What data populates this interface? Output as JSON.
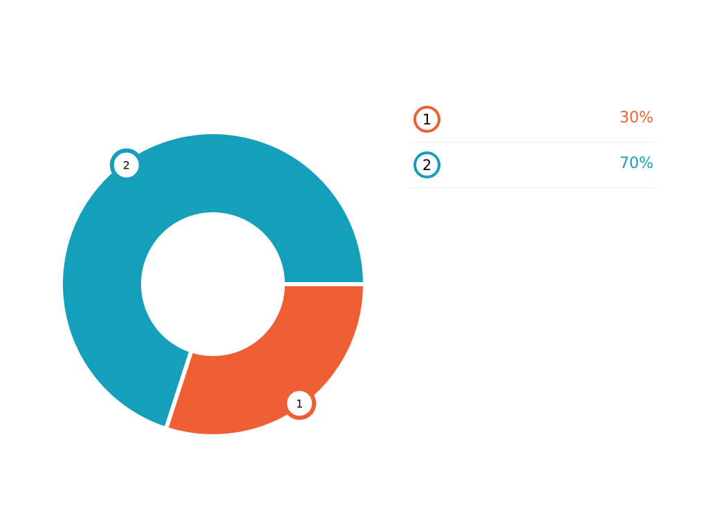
{
  "chart_data": {
    "type": "pie",
    "variant": "donut",
    "categories": [
      "1",
      "2"
    ],
    "values": [
      30,
      70
    ],
    "value_labels": [
      "30%",
      "70%"
    ],
    "colors": [
      "#f05f33",
      "#159fbb"
    ],
    "legend": "right",
    "title": "",
    "grid": false
  }
}
